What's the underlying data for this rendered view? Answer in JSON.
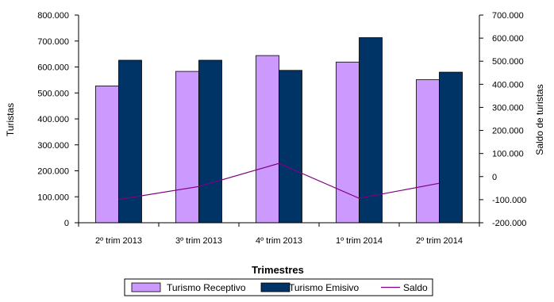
{
  "chart_data": {
    "type": "bar",
    "xlabel": "Trimestres",
    "ylabel": "Turistas",
    "y2label": "Saldo de turistas",
    "categories": [
      "2º trim 2013",
      "3º trim 2013",
      "4º trim 2013",
      "1º trim 2014",
      "2º trim 2014"
    ],
    "ylim": [
      0,
      800000
    ],
    "yticks": [
      "0",
      "100.000",
      "200.000",
      "300.000",
      "400.000",
      "500.000",
      "600.000",
      "700.000",
      "800.000"
    ],
    "y2lim": [
      -200000,
      700000
    ],
    "y2ticks": [
      "-200.000",
      "-100.000",
      "0",
      "100.000",
      "200.000",
      "300.000",
      "400.000",
      "500.000",
      "600.000",
      "700.000"
    ],
    "grid": false,
    "legend": "bottom",
    "series": [
      {
        "name": "Turismo Receptivo",
        "kind": "bar",
        "axis": "left",
        "color": "#cc99ff",
        "values": [
          527000,
          583000,
          644000,
          619000,
          551000
        ]
      },
      {
        "name": "Turismo Emisivo",
        "kind": "bar",
        "axis": "left",
        "color": "#003366",
        "values": [
          626000,
          626000,
          587000,
          713000,
          580000
        ]
      },
      {
        "name": "Saldo",
        "kind": "line",
        "axis": "right",
        "color": "#800080",
        "values": [
          -99000,
          -43000,
          57000,
          -94000,
          -29000
        ]
      }
    ]
  }
}
